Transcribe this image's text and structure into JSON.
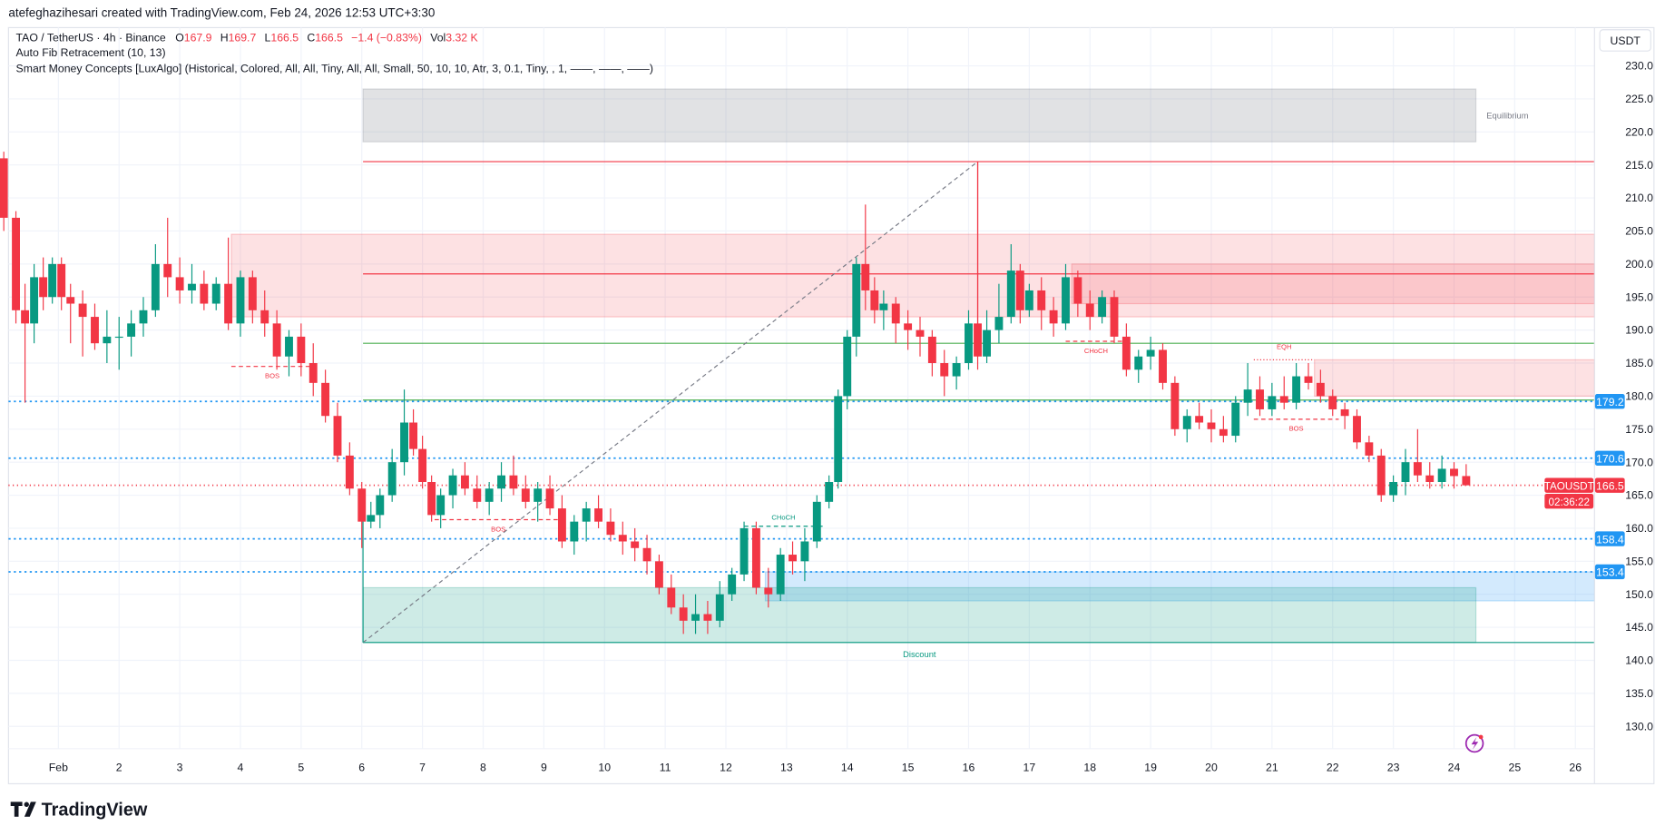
{
  "header": {
    "credit": "atefeghazihesari created with TradingView.com, Feb 24, 2026 12:53 UTC+3:30",
    "symbol": "TAO / TetherUS · 4h · Binance",
    "o_label": "O",
    "o": "167.9",
    "h_label": "H",
    "h": "169.7",
    "l_label": "L",
    "l": "166.5",
    "c_label": "C",
    "c": "166.5",
    "change": "−1.4 (−0.83%)",
    "vol_label": "Vol",
    "vol": "3.32 K",
    "indicator1": "Auto Fib Retracement (10, 13)",
    "indicator2": "Smart Money Concepts [LuxAlgo] (Historical, Colored, All, All, Tiny, All, All, Small, 50, 10, 10, Atr, 3, 0.1, Tiny, , 1, ——, ——, ——)"
  },
  "axis": {
    "currency_button": "USDT",
    "current_symbol": "TAOUSDT",
    "current_price": "166.5",
    "countdown": "02:36:22",
    "price_tags": [
      "179.2",
      "170.6",
      "158.4",
      "153.4"
    ]
  },
  "brand": {
    "logo_text": "TradingView"
  },
  "colors": {
    "up": "#089981",
    "down": "#f23645",
    "level": "#2196f3",
    "premium": "#f23645",
    "discount": "#089981",
    "equilibrium": "#787b86",
    "alert": "#9c27b0"
  },
  "chart_data": {
    "type": "candlestick",
    "interval": "4h",
    "ylim": [
      126,
      233
    ],
    "yticks": [
      130,
      135,
      140,
      145,
      150,
      155,
      160,
      165,
      170,
      175,
      180,
      185,
      190,
      195,
      200,
      205,
      210,
      215,
      220,
      225,
      230
    ],
    "xlim": [
      0,
      27.3
    ],
    "xticks": [
      {
        "day": 1,
        "label": "Feb"
      },
      {
        "day": 2,
        "label": "2"
      },
      {
        "day": 3,
        "label": "3"
      },
      {
        "day": 4,
        "label": "4"
      },
      {
        "day": 5,
        "label": "5"
      },
      {
        "day": 6,
        "label": "6"
      },
      {
        "day": 7,
        "label": "7"
      },
      {
        "day": 8,
        "label": "8"
      },
      {
        "day": 9,
        "label": "9"
      },
      {
        "day": 10,
        "label": "10"
      },
      {
        "day": 11,
        "label": "11"
      },
      {
        "day": 12,
        "label": "12"
      },
      {
        "day": 13,
        "label": "13"
      },
      {
        "day": 14,
        "label": "14"
      },
      {
        "day": 15,
        "label": "15"
      },
      {
        "day": 16,
        "label": "16"
      },
      {
        "day": 17,
        "label": "17"
      },
      {
        "day": 18,
        "label": "18"
      },
      {
        "day": 19,
        "label": "19"
      },
      {
        "day": 20,
        "label": "20"
      },
      {
        "day": 21,
        "label": "21"
      },
      {
        "day": 22,
        "label": "22"
      },
      {
        "day": 23,
        "label": "23"
      },
      {
        "day": 24,
        "label": "24"
      },
      {
        "day": 25,
        "label": "25"
      },
      {
        "day": 26,
        "label": "26"
      }
    ],
    "grid": true,
    "candles_format": [
      "day",
      "open",
      "high",
      "low",
      "close"
    ],
    "candles": [
      [
        0.1,
        216,
        217,
        205,
        207
      ],
      [
        0.3,
        207,
        208,
        191,
        193
      ],
      [
        0.45,
        193,
        197,
        179,
        191
      ],
      [
        0.6,
        191,
        200,
        188,
        198
      ],
      [
        0.75,
        198,
        201,
        193,
        195
      ],
      [
        0.9,
        195,
        201,
        194,
        200
      ],
      [
        1.05,
        200,
        201,
        193,
        195
      ],
      [
        1.2,
        195,
        197,
        188,
        194
      ],
      [
        1.4,
        194,
        196,
        186,
        192
      ],
      [
        1.6,
        192,
        194,
        187,
        188
      ],
      [
        1.8,
        188,
        193,
        185,
        189
      ],
      [
        2.0,
        189,
        192,
        184,
        189
      ],
      [
        2.2,
        189,
        193,
        186,
        191
      ],
      [
        2.4,
        191,
        195,
        189,
        193
      ],
      [
        2.6,
        193,
        203,
        192,
        200
      ],
      [
        2.8,
        200,
        207,
        195,
        198
      ],
      [
        3.0,
        198,
        201,
        194,
        196
      ],
      [
        3.2,
        196,
        200,
        194,
        197
      ],
      [
        3.4,
        197,
        199,
        193,
        194
      ],
      [
        3.6,
        194,
        198,
        193,
        197
      ],
      [
        3.8,
        197,
        204,
        190,
        191
      ],
      [
        4.0,
        191,
        199,
        189,
        198
      ],
      [
        4.2,
        198,
        199,
        191,
        193
      ],
      [
        4.4,
        193,
        196,
        189,
        191
      ],
      [
        4.6,
        191,
        193,
        184,
        186
      ],
      [
        4.8,
        186,
        190,
        183,
        189
      ],
      [
        5.0,
        189,
        191,
        183,
        185
      ],
      [
        5.2,
        185,
        188,
        180,
        182
      ],
      [
        5.4,
        182,
        184,
        176,
        177
      ],
      [
        5.6,
        177,
        179,
        170,
        171
      ],
      [
        5.8,
        171,
        173,
        165,
        166
      ],
      [
        6.0,
        166,
        167,
        157,
        161
      ],
      [
        6.15,
        161,
        164,
        160,
        162
      ],
      [
        6.3,
        162,
        166,
        160,
        165
      ],
      [
        6.5,
        165,
        172,
        164,
        170
      ],
      [
        6.7,
        170,
        181,
        168,
        176
      ],
      [
        6.85,
        176,
        178,
        171,
        172
      ],
      [
        7.0,
        172,
        174,
        166,
        167
      ],
      [
        7.15,
        167,
        168,
        161,
        162
      ],
      [
        7.3,
        162,
        166,
        160,
        165
      ],
      [
        7.5,
        165,
        169,
        163,
        168
      ],
      [
        7.7,
        168,
        170,
        165,
        166
      ],
      [
        7.9,
        166,
        168,
        163,
        164
      ],
      [
        8.1,
        164,
        167,
        162,
        166
      ],
      [
        8.3,
        166,
        170,
        164,
        168
      ],
      [
        8.5,
        168,
        171,
        165,
        166
      ],
      [
        8.7,
        166,
        168,
        163,
        164
      ],
      [
        8.9,
        164,
        167,
        161,
        166
      ],
      [
        9.1,
        166,
        168,
        162,
        163
      ],
      [
        9.3,
        163,
        165,
        157,
        158
      ],
      [
        9.5,
        158,
        162,
        156,
        161
      ],
      [
        9.7,
        161,
        164,
        158,
        163
      ],
      [
        9.9,
        163,
        165,
        160,
        161
      ],
      [
        10.1,
        161,
        163,
        158,
        159
      ],
      [
        10.3,
        159,
        161,
        156,
        158
      ],
      [
        10.5,
        158,
        160,
        155,
        157
      ],
      [
        10.7,
        157,
        159,
        153,
        155
      ],
      [
        10.9,
        155,
        156,
        150,
        151
      ],
      [
        11.1,
        151,
        153,
        147,
        148
      ],
      [
        11.3,
        148,
        150,
        144,
        146
      ],
      [
        11.5,
        146,
        150,
        144,
        147
      ],
      [
        11.7,
        147,
        149,
        144,
        146
      ],
      [
        11.9,
        146,
        152,
        145,
        150
      ],
      [
        12.1,
        150,
        154,
        149,
        153
      ],
      [
        12.3,
        153,
        161,
        152,
        160
      ],
      [
        12.5,
        160,
        161,
        150,
        151
      ],
      [
        12.7,
        151,
        154,
        148,
        150
      ],
      [
        12.9,
        150,
        157,
        149,
        156
      ],
      [
        13.1,
        156,
        158,
        153,
        155
      ],
      [
        13.3,
        155,
        160,
        152,
        158
      ],
      [
        13.5,
        158,
        165,
        157,
        164
      ],
      [
        13.7,
        164,
        168,
        163,
        167
      ],
      [
        13.85,
        167,
        181,
        166,
        180
      ],
      [
        14.0,
        180,
        190,
        178,
        189
      ],
      [
        14.15,
        189,
        201,
        186,
        200
      ],
      [
        14.3,
        200,
        209,
        193,
        196
      ],
      [
        14.45,
        196,
        198,
        191,
        193
      ],
      [
        14.6,
        193,
        196,
        190,
        194
      ],
      [
        14.8,
        194,
        195,
        188,
        191
      ],
      [
        15.0,
        191,
        193,
        187,
        190
      ],
      [
        15.2,
        190,
        192,
        186,
        189
      ],
      [
        15.4,
        189,
        190,
        183,
        185
      ],
      [
        15.6,
        185,
        187,
        180,
        183
      ],
      [
        15.8,
        183,
        186,
        181,
        185
      ],
      [
        16.0,
        185,
        193,
        184,
        191
      ],
      [
        16.15,
        191,
        215.5,
        184,
        186
      ],
      [
        16.3,
        186,
        193,
        185,
        190
      ],
      [
        16.5,
        190,
        197,
        188,
        192
      ],
      [
        16.7,
        192,
        203,
        191,
        199
      ],
      [
        16.85,
        199,
        200,
        191,
        193
      ],
      [
        17.0,
        193,
        197,
        192,
        196
      ],
      [
        17.2,
        196,
        198,
        190,
        193
      ],
      [
        17.4,
        193,
        195,
        189,
        191
      ],
      [
        17.6,
        191,
        200,
        190,
        198
      ],
      [
        17.8,
        198,
        199,
        192,
        194
      ],
      [
        18.0,
        194,
        196,
        190,
        192
      ],
      [
        18.2,
        192,
        196,
        191,
        195
      ],
      [
        18.4,
        195,
        196,
        188,
        189
      ],
      [
        18.6,
        189,
        191,
        183,
        184
      ],
      [
        18.8,
        184,
        187,
        182,
        186
      ],
      [
        19.0,
        186,
        189,
        184,
        187
      ],
      [
        19.2,
        187,
        188,
        181,
        182
      ],
      [
        19.4,
        182,
        183,
        174,
        175
      ],
      [
        19.6,
        175,
        178,
        173,
        177
      ],
      [
        19.8,
        177,
        179,
        175,
        176
      ],
      [
        20.0,
        176,
        178,
        173,
        175
      ],
      [
        20.2,
        175,
        177,
        173,
        174
      ],
      [
        20.4,
        174,
        180,
        173,
        179
      ],
      [
        20.6,
        179,
        185,
        177,
        181
      ],
      [
        20.8,
        181,
        183,
        177,
        178
      ],
      [
        21.0,
        178,
        182,
        177,
        180
      ],
      [
        21.2,
        180,
        183,
        178,
        179
      ],
      [
        21.4,
        179,
        185,
        178,
        183
      ],
      [
        21.6,
        183,
        185,
        181,
        182
      ],
      [
        21.8,
        182,
        184,
        179,
        180
      ],
      [
        22.0,
        180,
        181,
        177,
        178
      ],
      [
        22.2,
        178,
        179,
        175,
        177
      ],
      [
        22.4,
        177,
        178,
        172,
        173
      ],
      [
        22.6,
        173,
        174,
        170,
        171
      ],
      [
        22.8,
        171,
        172,
        164,
        165
      ],
      [
        23.0,
        165,
        168,
        164,
        167
      ],
      [
        23.2,
        167,
        172,
        165,
        170
      ],
      [
        23.4,
        170,
        175,
        167,
        168
      ],
      [
        23.6,
        168,
        170,
        166,
        167
      ],
      [
        23.8,
        167,
        171,
        166,
        169
      ],
      [
        24.0,
        169,
        170,
        166,
        167.9
      ],
      [
        24.2,
        167.9,
        169.7,
        166.5,
        166.5
      ]
    ],
    "zones": [
      {
        "name": "equilibrium-zone",
        "from_day": 6.02,
        "to_day": 24.36,
        "low": 218.5,
        "high": 226.5,
        "color": "#787b86",
        "label": "Equilibrium"
      },
      {
        "name": "premium-zone",
        "from_day": 3.85,
        "to_day": null,
        "low": 192,
        "high": 204.5,
        "color": "#f23645",
        "label": ""
      },
      {
        "name": "premium-inner-zone",
        "from_day": 17.7,
        "to_day": null,
        "low": 194,
        "high": 200,
        "color": "#f23645",
        "label": ""
      },
      {
        "name": "supply-zone",
        "from_day": 21.7,
        "to_day": null,
        "low": 180,
        "high": 185.5,
        "color": "#f23645",
        "label": ""
      },
      {
        "name": "demand-zone",
        "from_day": 12.65,
        "to_day": null,
        "low": 149,
        "high": 153.4,
        "color": "#2196f3",
        "label": ""
      },
      {
        "name": "discount-zone",
        "from_day": 6.02,
        "to_day": 24.36,
        "low": 142.7,
        "high": 151,
        "color": "#089981",
        "label": "Discount"
      }
    ],
    "levels": [
      {
        "price": 215.5,
        "from_day": 6.02,
        "color": "#f23645",
        "style": "solid"
      },
      {
        "price": 198.5,
        "from_day": 6.02,
        "color": "#f23645",
        "style": "solid"
      },
      {
        "price": 188,
        "from_day": 6.02,
        "color": "#4caf50",
        "style": "solid"
      },
      {
        "price": 179.4,
        "from_day": 6.02,
        "color": "#4caf50",
        "style": "solid"
      },
      {
        "price": 142.7,
        "from_day": 6.02,
        "color": "#089981",
        "style": "solid"
      },
      {
        "price": 179.2,
        "from_day": 0,
        "color": "#2196f3",
        "style": "dotted"
      },
      {
        "price": 170.6,
        "from_day": 0,
        "color": "#2196f3",
        "style": "dotted"
      },
      {
        "price": 158.4,
        "from_day": 0,
        "color": "#2196f3",
        "style": "dotted"
      },
      {
        "price": 153.4,
        "from_day": 0,
        "color": "#2196f3",
        "style": "dotted"
      },
      {
        "price": 166.5,
        "from_day": 0,
        "color": "#f23645",
        "style": "dotted"
      }
    ],
    "fib_trend": {
      "from": [
        6.02,
        142.7
      ],
      "to": [
        16.15,
        215.5
      ]
    },
    "structure": [
      {
        "label": "BOS",
        "price": 184.5,
        "from_day": 3.85,
        "to_day": 5.2,
        "color": "#f23645"
      },
      {
        "label": "BOS",
        "price": 161.3,
        "from_day": 7.2,
        "to_day": 9.3,
        "color": "#f23645"
      },
      {
        "label": "CHoCH",
        "price": 160.3,
        "from_day": 12.3,
        "to_day": 13.6,
        "color": "#089981"
      },
      {
        "label": "CHoCH",
        "price": 188.3,
        "from_day": 17.6,
        "to_day": 18.6,
        "color": "#f23645"
      },
      {
        "label": "BOS",
        "price": 176.5,
        "from_day": 20.7,
        "to_day": 22.1,
        "color": "#f23645"
      },
      {
        "label": "EQH",
        "price": 185.5,
        "from_day": 20.7,
        "to_day": 21.7,
        "color": "#f23645"
      }
    ]
  }
}
